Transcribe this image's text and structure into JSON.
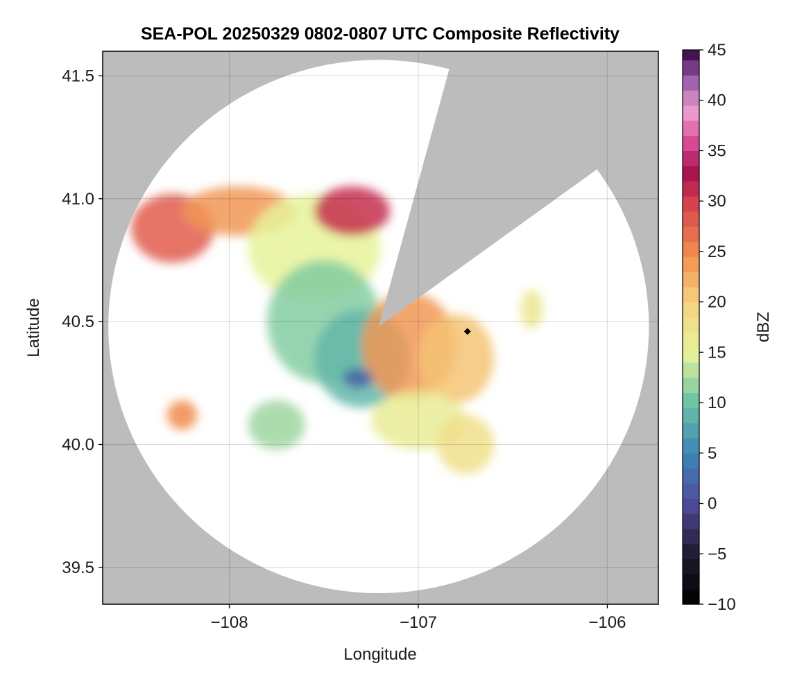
{
  "chart_data": {
    "type": "heatmap",
    "title": "SEA-POL 20250329 0802-0807 UTC Composite Reflectivity",
    "xlabel": "Longitude",
    "ylabel": "Latitude",
    "xlim": [
      -108.67,
      -105.73
    ],
    "ylim": [
      39.35,
      41.6
    ],
    "xticks": [
      -108,
      -107,
      -106
    ],
    "xtick_labels": [
      "−108",
      "−107",
      "−106"
    ],
    "yticks": [
      39.5,
      40.0,
      40.5,
      41.0,
      41.5
    ],
    "ytick_labels": [
      "39.5",
      "40.0",
      "40.5",
      "41.0",
      "41.5"
    ],
    "grid": true,
    "radar": {
      "center_lon": -107.21,
      "center_lat": 40.48,
      "range_lon": 1.43,
      "range_lat": 1.085,
      "blocked_sectors": [
        {
          "from_lon": -106.84,
          "from_lat": 41.53
        },
        {
          "from_lon": -106.05,
          "from_lat": 41.13
        }
      ],
      "marker": {
        "lon": -106.74,
        "lat": 40.46
      }
    },
    "echo_regions": [
      {
        "lon": -108.3,
        "lat": 40.88,
        "rx": 0.22,
        "ry": 0.14,
        "dbz": 28
      },
      {
        "lon": -107.95,
        "lat": 40.95,
        "rx": 0.3,
        "ry": 0.1,
        "dbz": 24
      },
      {
        "lon": -107.55,
        "lat": 40.8,
        "rx": 0.35,
        "ry": 0.22,
        "dbz": 15
      },
      {
        "lon": -107.35,
        "lat": 40.95,
        "rx": 0.2,
        "ry": 0.1,
        "dbz": 31
      },
      {
        "lon": -107.5,
        "lat": 40.5,
        "rx": 0.3,
        "ry": 0.25,
        "dbz": 11
      },
      {
        "lon": -107.3,
        "lat": 40.35,
        "rx": 0.25,
        "ry": 0.2,
        "dbz": 9
      },
      {
        "lon": -107.05,
        "lat": 40.4,
        "rx": 0.25,
        "ry": 0.22,
        "dbz": 24
      },
      {
        "lon": -106.8,
        "lat": 40.35,
        "rx": 0.2,
        "ry": 0.18,
        "dbz": 21
      },
      {
        "lon": -107.0,
        "lat": 40.1,
        "rx": 0.25,
        "ry": 0.12,
        "dbz": 16
      },
      {
        "lon": -106.75,
        "lat": 40.0,
        "rx": 0.15,
        "ry": 0.12,
        "dbz": 18
      },
      {
        "lon": -107.75,
        "lat": 40.08,
        "rx": 0.15,
        "ry": 0.1,
        "dbz": 12
      },
      {
        "lon": -108.25,
        "lat": 40.12,
        "rx": 0.08,
        "ry": 0.06,
        "dbz": 25
      },
      {
        "lon": -106.4,
        "lat": 40.55,
        "rx": 0.06,
        "ry": 0.08,
        "dbz": 17
      },
      {
        "lon": -107.32,
        "lat": 40.27,
        "rx": 0.08,
        "ry": 0.04,
        "dbz": 2
      }
    ],
    "colorbar": {
      "label": "dBZ",
      "min": -10,
      "max": 45,
      "step": 1.5,
      "ticks": [
        -10,
        -5,
        0,
        5,
        10,
        15,
        20,
        25,
        30,
        35,
        40,
        45
      ],
      "tick_labels": [
        "−10",
        "−5",
        "0",
        "5",
        "10",
        "15",
        "20",
        "25",
        "30",
        "35",
        "40",
        "45"
      ],
      "colormap": [
        {
          "v": -10,
          "c": "#000000"
        },
        {
          "v": -5,
          "c": "#201b2e"
        },
        {
          "v": 0,
          "c": "#4f4b9c"
        },
        {
          "v": 5,
          "c": "#3d86b9"
        },
        {
          "v": 10,
          "c": "#6cc3a4"
        },
        {
          "v": 15,
          "c": "#e6f39a"
        },
        {
          "v": 20,
          "c": "#f6d27f"
        },
        {
          "v": 25,
          "c": "#f08a4b"
        },
        {
          "v": 30,
          "c": "#d53e4f"
        },
        {
          "v": 33,
          "c": "#a5114f"
        },
        {
          "v": 36,
          "c": "#dc4f99"
        },
        {
          "v": 39,
          "c": "#ef9fd0"
        },
        {
          "v": 42,
          "c": "#9b5fad"
        },
        {
          "v": 45,
          "c": "#3f0a4e"
        }
      ]
    }
  },
  "colors": {
    "background_outside": "#bcbcbc",
    "coverage": "#ffffff",
    "grid": "#c8c8c8",
    "axis": "#000000"
  }
}
